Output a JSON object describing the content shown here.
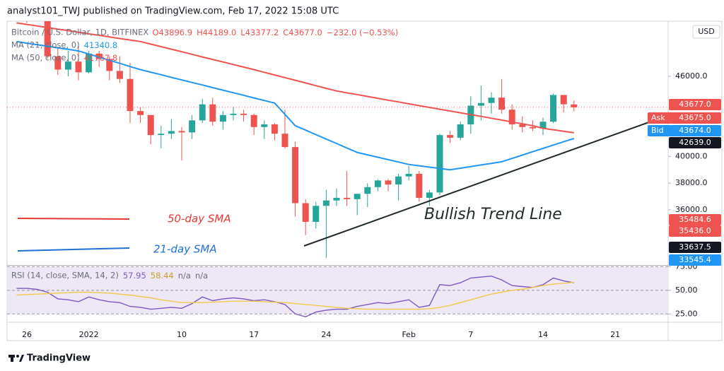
{
  "ui": {
    "header": "analyst101_TWJ published on TradingView.com, Feb 17, 2022 15:08 UTC",
    "symbol": "Bitcoin / U.S. Dollar, 1D, BITFINEX",
    "legend_ohlc": [
      "O43896.9",
      "H44189.0",
      "L43377.2",
      "C43677.0",
      "−232.0 (−0.53%)"
    ],
    "ma_values": [
      "41340.8",
      "41767.8"
    ],
    "rsi_legend": [
      "n/a",
      "n/a"
    ],
    "currency": "USD",
    "price_boxes": [
      {
        "text": "43677.0",
        "color": "#ef5350"
      },
      {
        "tag": "Ask",
        "text": "43675.0",
        "color": "#ef5350"
      },
      {
        "tag": "Bid",
        "text": "43674.0",
        "color": "#2196f3"
      },
      {
        "text": "42639.0",
        "color": "#131722"
      },
      {
        "text": "35484.6",
        "color": "#ef5350"
      },
      {
        "text": "35436.0",
        "color": "#ef5350"
      },
      {
        "text": "33637.5",
        "color": "#131722"
      },
      {
        "text": "33545.4",
        "color": "#2196f3"
      }
    ],
    "brand": "TradingView"
  },
  "chart_data": [
    {
      "type": "candlestick",
      "categories": [
        null,
        "26",
        null,
        null,
        null,
        null,
        null,
        "2022",
        null,
        null,
        null,
        null,
        null,
        null,
        null,
        null,
        "10",
        null,
        null,
        null,
        null,
        null,
        null,
        "17",
        null,
        null,
        null,
        null,
        null,
        null,
        "24",
        null,
        null,
        null,
        null,
        null,
        null,
        null,
        "Feb",
        null,
        null,
        null,
        null,
        null,
        "7",
        null,
        null,
        null,
        null,
        null,
        null,
        "14",
        null,
        null,
        null,
        null,
        null,
        null,
        "21",
        null,
        null,
        null,
        null,
        null
      ],
      "open": [
        50400,
        50800,
        50700,
        50600,
        47500,
        46500,
        47100,
        46300,
        47700,
        47300,
        46400,
        45800,
        43400,
        43100,
        41600,
        41700,
        41900,
        41800,
        42700,
        43900,
        42600,
        43100,
        43200,
        43100,
        42200,
        42400,
        41700,
        40700,
        36500,
        35100,
        36300,
        36700,
        36900,
        36800,
        37200,
        37700,
        38200,
        37900,
        38500,
        38700,
        36900,
        37300,
        41600,
        41400,
        42400,
        43800,
        44000,
        44400,
        43500,
        42400,
        42200,
        42100,
        42600,
        44600,
        43896.9,
        null,
        null,
        null,
        null,
        null,
        null,
        null,
        null,
        null
      ],
      "high": [
        51200,
        51900,
        52100,
        50700,
        48100,
        47900,
        48500,
        47900,
        47900,
        47500,
        47500,
        47000,
        43700,
        43100,
        42300,
        42800,
        42200,
        43100,
        44300,
        44400,
        43400,
        43700,
        43500,
        43200,
        42700,
        42500,
        43500,
        41100,
        36800,
        36600,
        37500,
        37600,
        38900,
        37200,
        38000,
        38300,
        38300,
        38700,
        39300,
        38900,
        37500,
        41700,
        41900,
        42600,
        44500,
        45300,
        44800,
        45800,
        43900,
        43000,
        42700,
        42900,
        44700,
        44600,
        44189,
        null,
        null,
        null,
        null,
        null,
        null,
        null,
        null,
        null
      ],
      "low": [
        50200,
        50000,
        50400,
        47300,
        46100,
        46000,
        45700,
        46200,
        46700,
        45700,
        45500,
        42500,
        42500,
        40900,
        40600,
        41300,
        39700,
        41300,
        42500,
        42300,
        42000,
        42700,
        42600,
        41600,
        41300,
        41200,
        40600,
        35500,
        34100,
        34600,
        32400,
        36300,
        36300,
        35600,
        36200,
        37400,
        37400,
        36700,
        38200,
        36600,
        36300,
        37100,
        41000,
        41200,
        41700,
        42700,
        43200,
        43200,
        42000,
        41800,
        41900,
        41600,
        42500,
        43300,
        43377.2,
        null,
        null,
        null,
        null,
        null,
        null,
        null,
        null,
        null
      ],
      "close": [
        50800,
        50700,
        50600,
        47500,
        46500,
        47100,
        46300,
        47700,
        47300,
        46400,
        45800,
        43400,
        43100,
        41600,
        41700,
        41900,
        41800,
        42700,
        43900,
        42600,
        43100,
        43200,
        43100,
        42200,
        42400,
        41700,
        40700,
        36500,
        35100,
        36300,
        36700,
        36900,
        36800,
        37200,
        37700,
        38200,
        37900,
        38500,
        38700,
        36900,
        37300,
        41600,
        41400,
        42400,
        43800,
        44000,
        44400,
        43500,
        42400,
        42200,
        42100,
        42600,
        44600,
        43900,
        43677,
        null,
        null,
        null,
        null,
        null,
        null,
        null,
        null,
        null
      ],
      "up_color": "#26a69a",
      "down_color": "#ef5350",
      "series": [
        {
          "name": "MA (21, close, 0)",
          "color": "#2196f3",
          "values": [
            48600,
            48480,
            48370,
            48250,
            48130,
            48020,
            47900,
            47670,
            47430,
            47200,
            46970,
            46730,
            46500,
            46310,
            46120,
            45920,
            45730,
            45540,
            45350,
            45150,
            44960,
            44770,
            44580,
            44380,
            44190,
            44000,
            43150,
            42300,
            41970,
            41630,
            41300,
            40970,
            40630,
            40300,
            40120,
            39940,
            39760,
            39580,
            39400,
            39300,
            39200,
            39100,
            39000,
            39120,
            39240,
            39360,
            39480,
            39600,
            39850,
            40100,
            40350,
            40600,
            40850,
            41100,
            41340.8,
            null,
            null,
            null,
            null,
            null,
            null,
            null,
            null,
            null
          ]
        },
        {
          "name": "MA (50, close, 0)",
          "color": "#ef5350",
          "values": [
            50000,
            49880,
            49770,
            49650,
            49530,
            49420,
            49300,
            49180,
            49070,
            48950,
            48830,
            48720,
            48600,
            48410,
            48220,
            48030,
            47840,
            47650,
            47450,
            47260,
            47070,
            46880,
            46690,
            46500,
            46300,
            46100,
            45900,
            45700,
            45500,
            45300,
            45100,
            44900,
            44760,
            44630,
            44490,
            44350,
            44210,
            44080,
            43940,
            43800,
            43670,
            43530,
            43400,
            43270,
            43130,
            43000,
            42860,
            42720,
            42580,
            42440,
            42300,
            42100,
            42000,
            41880,
            41767.8,
            null,
            null,
            null,
            null,
            null,
            null,
            null,
            null,
            null
          ]
        }
      ],
      "ylim": [
        31870,
        50125
      ],
      "yticks": [
        {
          "value": 46000,
          "label": "46000.0"
        },
        {
          "value": 40000,
          "label": "40000.0"
        },
        {
          "value": 38000,
          "label": "38000.0"
        },
        {
          "value": 36000,
          "label": "36000.0"
        }
      ],
      "grid": false,
      "annotations": [
        "50-day SMA",
        "21-day SMA",
        "Bullish Trend Line"
      ]
    },
    {
      "type": "line",
      "title": "RSI (14, close, SMA, 14, 2)",
      "series": [
        {
          "name": "RSI",
          "color": "#7e57c2",
          "values": [
            52,
            52,
            51,
            48,
            41,
            40,
            38,
            43,
            40,
            38,
            37,
            33,
            32,
            30,
            31,
            32,
            31,
            36,
            43,
            39,
            41,
            42,
            41,
            39,
            40,
            38,
            35,
            25,
            22,
            27,
            29,
            30,
            30,
            33,
            35,
            37,
            36,
            38,
            40,
            32,
            34,
            56,
            55,
            58,
            63,
            64,
            65,
            61,
            55,
            54,
            53,
            56,
            63,
            60,
            57.95,
            null,
            null,
            null,
            null,
            null,
            null,
            null,
            null,
            null
          ]
        },
        {
          "name": "RSI-based MA",
          "color": "#f2c94c",
          "values": [
            45,
            45.5,
            46,
            46.5,
            47,
            47.5,
            48,
            48,
            47.5,
            47,
            46,
            45,
            43.5,
            42,
            40,
            38.5,
            37,
            37,
            37,
            37.5,
            38,
            38.5,
            38.5,
            38.5,
            38,
            37.5,
            37,
            36,
            35,
            34,
            33,
            32,
            31,
            30.5,
            30,
            30,
            30,
            30,
            30,
            30,
            30.5,
            32,
            34,
            37,
            40,
            43,
            46,
            48,
            50,
            51,
            53,
            55,
            56.5,
            57.5,
            58.44,
            null,
            null,
            null,
            null,
            null,
            null,
            null,
            null,
            null
          ]
        }
      ],
      "ylim": [
        17,
        76
      ],
      "yticks": [
        {
          "value": 75,
          "label": "75.00"
        },
        {
          "value": 50,
          "label": "50.00"
        },
        {
          "value": 25,
          "label": "25.00"
        }
      ],
      "band_color": "#ede7f6"
    }
  ]
}
